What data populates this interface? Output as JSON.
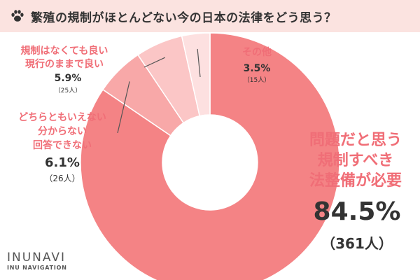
{
  "title": "繁殖の規制がほとんどない今の日本の法律をどう思う？",
  "colors": {
    "title_bar": "#fbe3e0",
    "accent": "#f06e77"
  },
  "brand": {
    "name": "INUNAVI",
    "sub": "INU NAVIGATION"
  },
  "chart_data": {
    "type": "pie",
    "donut": true,
    "slices": [
      {
        "label_lines": [
          "問題だと思う",
          "規制すべき",
          "法整備が必要"
        ],
        "percent_text": "84.5%",
        "count_text": "（361人）",
        "value": 84.5,
        "color": "#f48385"
      },
      {
        "label_lines": [
          "どちらともいえない",
          "分からない",
          "回答できない"
        ],
        "percent_text": "6.1%",
        "count_text": "（26人）",
        "value": 6.1,
        "color": "#f8a8a8"
      },
      {
        "label_lines": [
          "規制はなくても良い",
          "現行のままで良い"
        ],
        "percent_text": "5.9%",
        "count_text": "（25人）",
        "value": 5.9,
        "color": "#fbc6c6"
      },
      {
        "label_lines": [
          "その他"
        ],
        "percent_text": "3.5%",
        "count_text": "（15人）",
        "value": 3.5,
        "color": "#fde0e0"
      }
    ]
  }
}
